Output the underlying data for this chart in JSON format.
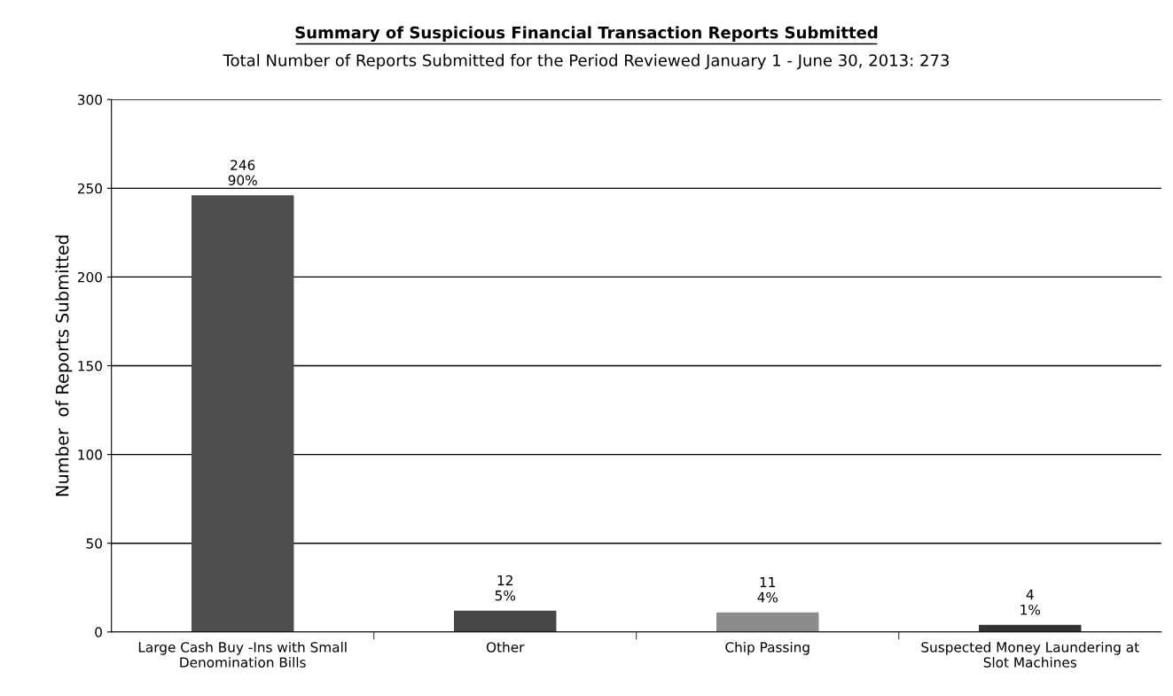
{
  "chart_data": {
    "type": "bar",
    "title": "Summary of Suspicious Financial Transaction Reports Submitted",
    "subtitle": "Total Number of Reports Submitted for the Period Reviewed January 1 - June 30, 2013: 273",
    "ylabel": "Number  of Reports Submitted",
    "categories": [
      "Large Cash Buy -Ins with Small\nDenomination Bills",
      "Other",
      "Chip Passing",
      "Suspected Money Laundering at\nSlot Machines"
    ],
    "values": [
      246,
      12,
      11,
      4
    ],
    "colors": [
      "#4d4d4d",
      "#474747",
      "#8c8c8c",
      "#333333"
    ],
    "value_labels": [
      "246\n90%",
      "12\n5%",
      "11\n4%",
      "4\n1%"
    ],
    "ylim": [
      0,
      300
    ],
    "yticks": [
      0,
      50,
      100,
      150,
      200,
      250,
      300
    ],
    "grid": "y",
    "legend": false
  }
}
